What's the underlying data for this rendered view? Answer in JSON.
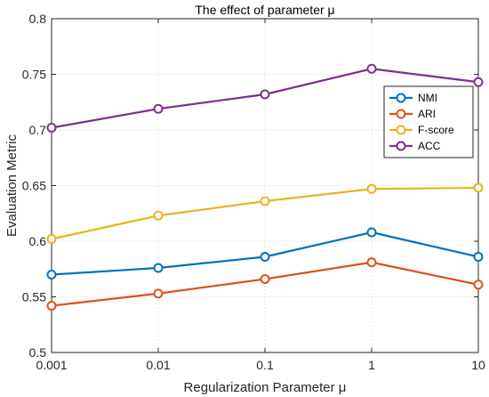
{
  "chart_data": {
    "type": "line",
    "title": "The effect of parameter μ",
    "xlabel": "Regularization Parameter μ",
    "ylabel": "Evaluation Metric",
    "categories": [
      "0.001",
      "0.01",
      "0.1",
      "1",
      "10"
    ],
    "ylim": [
      0.5,
      0.8
    ],
    "yticks": [
      "0.5",
      "0.55",
      "0.6",
      "0.65",
      "0.7",
      "0.75",
      "0.8"
    ],
    "grid": true,
    "legend": "top-right",
    "series": [
      {
        "name": "NMI",
        "color": "#0072BD",
        "values": [
          0.57,
          0.576,
          0.586,
          0.608,
          0.586
        ]
      },
      {
        "name": "ARI",
        "color": "#D95319",
        "values": [
          0.542,
          0.553,
          0.566,
          0.581,
          0.561
        ]
      },
      {
        "name": "F-score",
        "color": "#EDB120",
        "values": [
          0.602,
          0.623,
          0.636,
          0.647,
          0.648
        ]
      },
      {
        "name": "ACC",
        "color": "#7E2F8E",
        "values": [
          0.702,
          0.719,
          0.732,
          0.755,
          0.743
        ]
      }
    ]
  }
}
